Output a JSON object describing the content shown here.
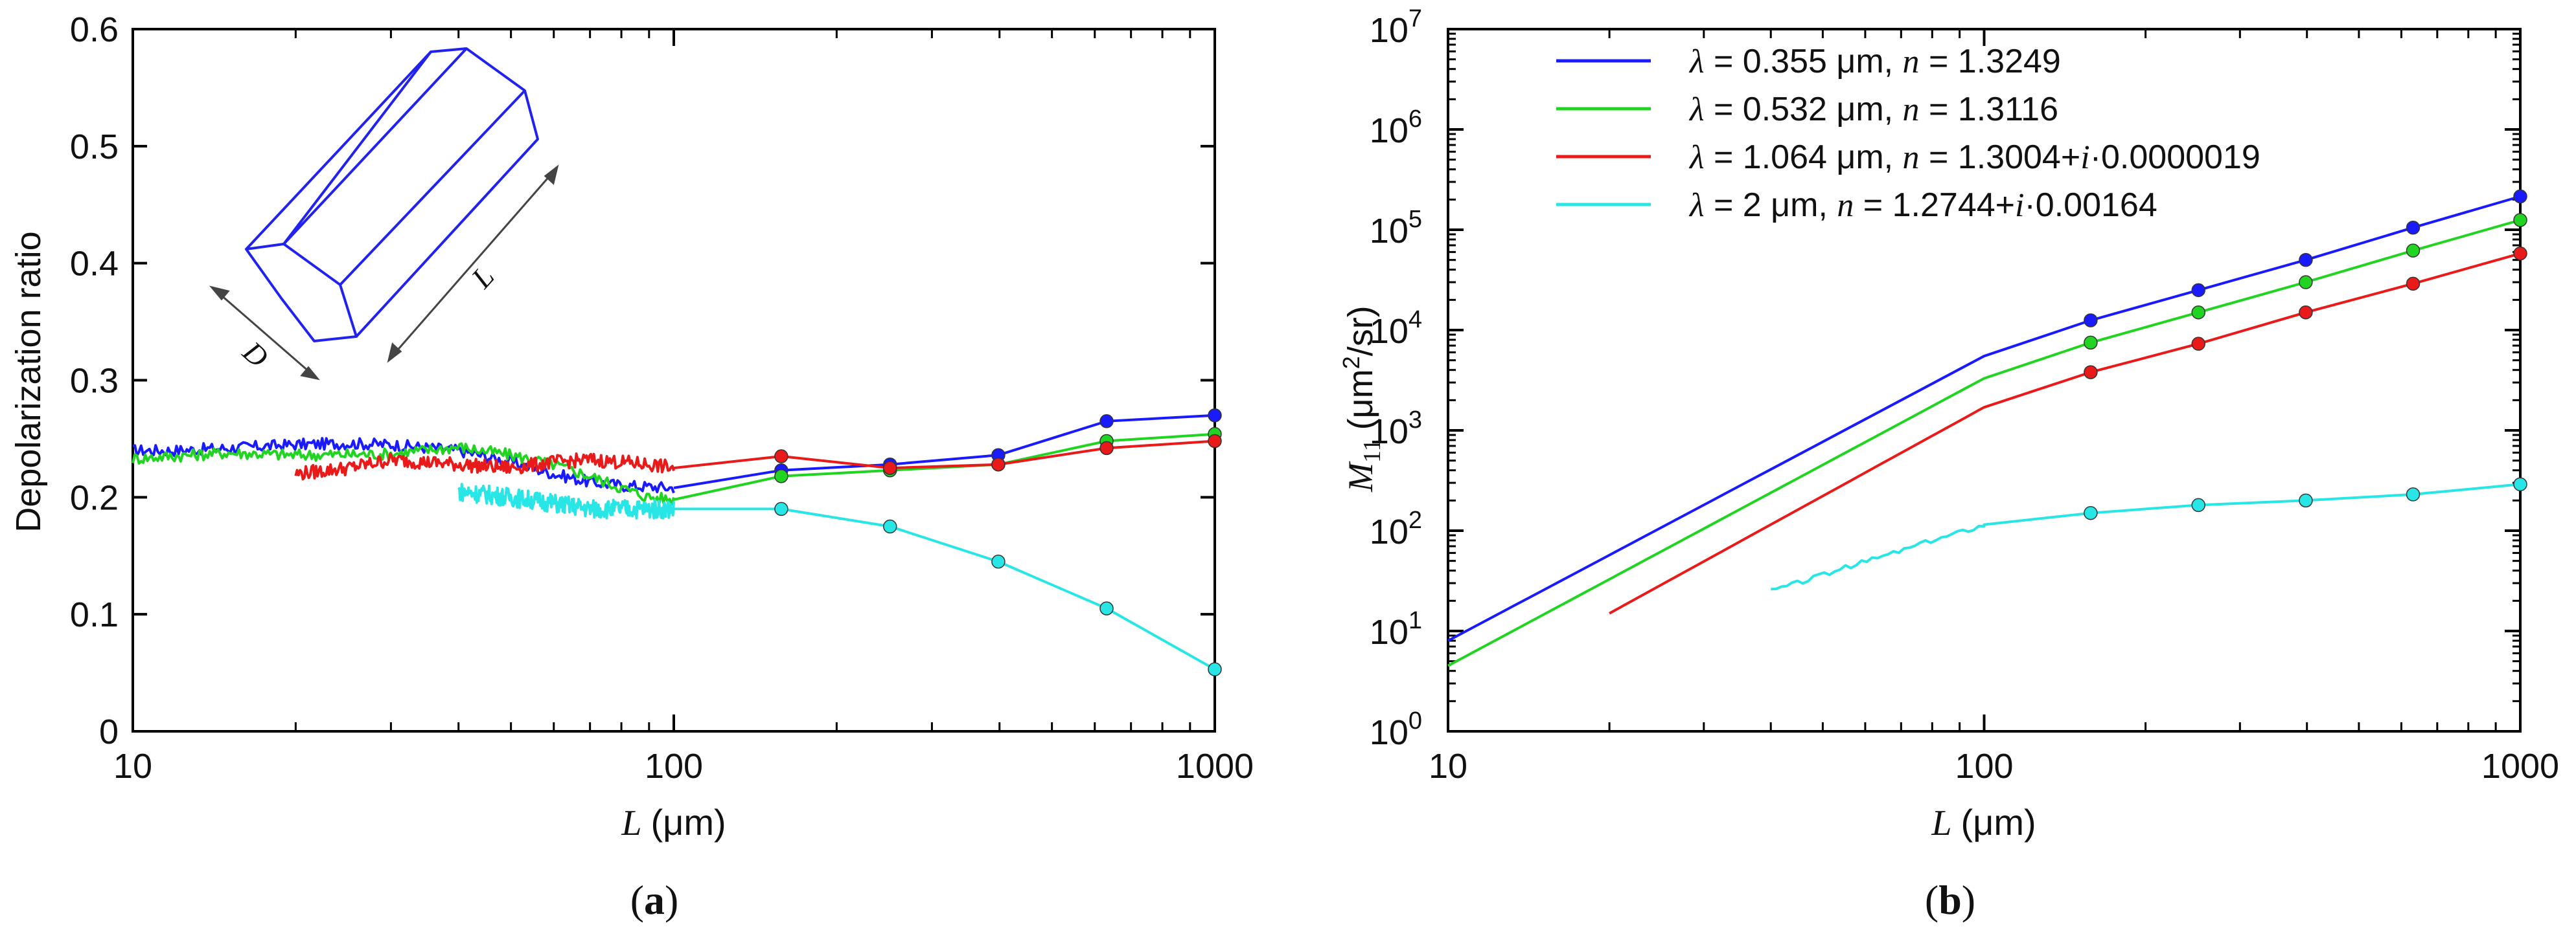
{
  "chart_data": [
    {
      "panel": "(a)",
      "panel_label_letter": "a",
      "type": "line",
      "xscale": "log",
      "xlim": [
        10,
        1000
      ],
      "ylim": [
        0,
        0.6
      ],
      "xlabel_var": "L",
      "xlabel_unit": "(μm)",
      "ylabel": "Depolarization ratio",
      "x_ticks": [
        10,
        100,
        1000
      ],
      "x_tick_labels": [
        "10",
        "100",
        "1000"
      ],
      "y_ticks": [
        0,
        0.1,
        0.2,
        0.3,
        0.4,
        0.5,
        0.6
      ],
      "y_tick_labels": [
        "0",
        "0.1",
        "0.2",
        "0.3",
        "0.4",
        "0.5",
        "0.6"
      ],
      "inset": {
        "type": "hexagonal-column-diagram",
        "label_d": "D",
        "label_l": "L"
      },
      "series": [
        {
          "name": "λ = 0.355 μm",
          "color": "#1a1aff",
          "noisy_x": [
            10,
            12,
            15,
            20,
            25,
            30,
            40,
            50,
            60,
            70,
            80,
            90,
            100
          ],
          "noisy_y": [
            0.24,
            0.24,
            0.242,
            0.245,
            0.246,
            0.245,
            0.24,
            0.23,
            0.22,
            0.213,
            0.21,
            0.209,
            0.208
          ],
          "noise": 0.005,
          "x": [
            100,
            158,
            251,
            398,
            631,
            1000
          ],
          "values": [
            0.208,
            0.223,
            0.228,
            0.236,
            0.265,
            0.27
          ]
        },
        {
          "name": "λ = 0.532 μm",
          "color": "#22d422",
          "noisy_x": [
            10,
            15,
            20,
            30,
            40,
            50,
            60,
            70,
            80,
            90,
            100
          ],
          "noisy_y": [
            0.233,
            0.238,
            0.236,
            0.237,
            0.243,
            0.236,
            0.228,
            0.218,
            0.208,
            0.2,
            0.198
          ],
          "noise": 0.005,
          "x": [
            100,
            158,
            251,
            398,
            631,
            1000
          ],
          "values": [
            0.198,
            0.218,
            0.223,
            0.228,
            0.248,
            0.254
          ]
        },
        {
          "name": "λ = 1.064 μm",
          "color": "#e81a1a",
          "noisy_x": [
            20,
            25,
            30,
            40,
            50,
            60,
            70,
            80,
            90,
            100
          ],
          "noisy_y": [
            0.22,
            0.225,
            0.232,
            0.228,
            0.225,
            0.23,
            0.232,
            0.23,
            0.228,
            0.225
          ],
          "noise": 0.006,
          "x": [
            100,
            158,
            251,
            398,
            631,
            1000
          ],
          "values": [
            0.225,
            0.235,
            0.225,
            0.228,
            0.242,
            0.248
          ]
        },
        {
          "name": "λ = 2 μm",
          "color": "#28e6e6",
          "noisy_x": [
            40,
            50,
            60,
            70,
            80,
            90,
            100
          ],
          "noisy_y": [
            0.205,
            0.2,
            0.195,
            0.19,
            0.19,
            0.19,
            0.19
          ],
          "noise": 0.008,
          "x": [
            100,
            158,
            251,
            398,
            631,
            1000
          ],
          "values": [
            0.19,
            0.19,
            0.175,
            0.145,
            0.105,
            0.053
          ]
        }
      ]
    },
    {
      "panel": "(b)",
      "panel_label_letter": "b",
      "type": "line",
      "xscale": "log",
      "yscale": "log",
      "xlim": [
        10,
        1000
      ],
      "ylim": [
        1,
        10000000
      ],
      "xlabel_var": "L",
      "xlabel_unit": "(μm)",
      "ylabel_var": "M",
      "ylabel_sub": "11",
      "ylabel_unit_a": "(μm",
      "ylabel_unit_sup": "2",
      "ylabel_unit_b": "/sr)",
      "x_ticks": [
        10,
        100,
        1000
      ],
      "x_tick_labels": [
        "10",
        "100",
        "1000"
      ],
      "y_ticks": [
        1,
        10,
        100,
        1000,
        10000,
        100000,
        1000000,
        10000000
      ],
      "y_tick_labels_base": "10",
      "y_tick_labels_exp": [
        "0",
        "1",
        "2",
        "3",
        "4",
        "5",
        "6",
        "7"
      ],
      "legend": [
        {
          "lambda": "λ",
          "wl": " = 0.355 μm,  ",
          "n": "n",
          "rest": " = 1.3249",
          "color": "#1a1aff"
        },
        {
          "lambda": "λ",
          "wl": " = 0.532 μm,  ",
          "n": "n",
          "rest": " = 1.3116",
          "color": "#22d422"
        },
        {
          "lambda": "λ",
          "wl": " = 1.064 μm,  ",
          "n": "n",
          "rest": " = 1.3004+",
          "i": "i",
          "rest2": "·0.0000019",
          "color": "#e81a1a"
        },
        {
          "lambda": "λ",
          "wl": " = 2 μm,  ",
          "n": "n",
          "rest": " = 1.2744+",
          "i": "i",
          "rest2": "·0.00164",
          "color": "#28e6e6"
        }
      ],
      "series": [
        {
          "name": "λ = 0.355 μm",
          "color": "#1a1aff",
          "x": [
            10,
            100,
            158,
            251,
            398,
            631,
            1000
          ],
          "values": [
            8,
            5500,
            12500,
            25000,
            50000,
            105000,
            215000
          ],
          "markers_from": 2
        },
        {
          "name": "λ = 0.532 μm",
          "color": "#22d422",
          "x": [
            10,
            100,
            158,
            251,
            398,
            631,
            1000
          ],
          "values": [
            4.5,
            3300,
            7500,
            15000,
            30000,
            62000,
            125000
          ],
          "markers_from": 2
        },
        {
          "name": "λ = 1.064 μm",
          "color": "#e81a1a",
          "x": [
            20,
            100,
            158,
            251,
            398,
            631,
            1000
          ],
          "values": [
            15,
            1700,
            3800,
            7300,
            15000,
            29000,
            58000
          ],
          "markers_from": 2
        },
        {
          "name": "λ = 2 μm",
          "color": "#28e6e6",
          "x": [
            40,
            100,
            158,
            251,
            398,
            631,
            1000
          ],
          "values": [
            25,
            115,
            150,
            180,
            200,
            230,
            290
          ],
          "markers_from": 2
        }
      ]
    }
  ]
}
